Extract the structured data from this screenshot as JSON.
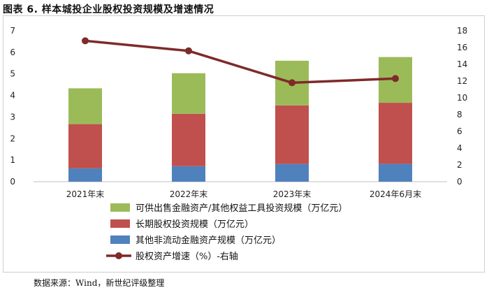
{
  "figure_title": "图表 6.   样本城投企业股权投资规模及增速情况",
  "source": "数据来源：Wind，新世纪评级整理",
  "chart_data": {
    "type": "bar",
    "stacked": true,
    "title": "样本城投企业股权投资规模及增速情况",
    "categories": [
      "2021年末",
      "2022年末",
      "2023年末",
      "2024年6月末"
    ],
    "ylim": [
      0,
      7
    ],
    "yticks": [
      "0",
      "1",
      "2",
      "3",
      "4",
      "5",
      "6",
      "7"
    ],
    "y2lim": [
      0,
      18
    ],
    "y2ticks": [
      "0",
      "2",
      "4",
      "6",
      "8",
      "10",
      "12",
      "14",
      "16",
      "18"
    ],
    "series": [
      {
        "name": "其他非流动金融资产规模（万亿元）",
        "values": [
          0.62,
          0.72,
          0.82,
          0.83
        ],
        "color": "#4f81bd",
        "axis": "left"
      },
      {
        "name": "长期股权投资规模（万亿元）",
        "values": [
          2.05,
          2.43,
          2.72,
          2.83
        ],
        "color": "#c0504d",
        "axis": "left"
      },
      {
        "name": "可供出售金融资产/其他权益工具投资规模（万亿元）",
        "values": [
          1.66,
          1.88,
          2.07,
          2.12
        ],
        "color": "#9bbb59",
        "axis": "left"
      },
      {
        "name": "股权资产增速（%）-右轴",
        "type": "line",
        "values": [
          16.8,
          15.6,
          11.8,
          12.3
        ],
        "color": "#7f2a2a",
        "axis": "right"
      }
    ],
    "legend_order": [
      2,
      1,
      0,
      3
    ]
  }
}
